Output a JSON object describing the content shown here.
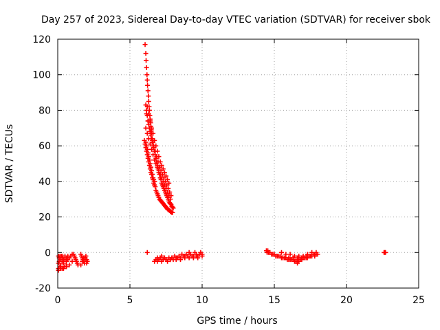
{
  "chart_data": {
    "type": "scatter",
    "title": "Day 257 of 2023, Sidereal Day-to-day VTEC variation (SDTVAR) for receiver sbok",
    "xlabel": "GPS time / hours",
    "ylabel": "SDTVAR / TECUs",
    "xlim": [
      0,
      25
    ],
    "ylim": [
      -20,
      120
    ],
    "xticks": [
      0,
      5,
      10,
      15,
      20,
      25
    ],
    "yticks": [
      -20,
      0,
      20,
      40,
      60,
      80,
      100,
      120
    ],
    "grid": true,
    "marker": "+",
    "marker_color": "#ff0000",
    "series": [
      {
        "name": "SDTVAR",
        "x": [
          0.05,
          0.1,
          0.15,
          0.2,
          0.25,
          0.3,
          0.35,
          0.4,
          0.5,
          0.6,
          0.7,
          0.05,
          0.1,
          0.2,
          0.3,
          0.4,
          0.5,
          0.6,
          0.7,
          0.8,
          0.9,
          1.0,
          0.05,
          0.15,
          0.3,
          0.45,
          0.6,
          0.05,
          0.2,
          0.4,
          0.6,
          0.8,
          1.0,
          1.1,
          1.15,
          1.2,
          1.25,
          1.3,
          1.35,
          1.4,
          1.6,
          1.65,
          1.7,
          1.75,
          1.8,
          1.85,
          1.9,
          1.95,
          2.0,
          2.05,
          1.6,
          1.7,
          1.8,
          1.9,
          2.0,
          6.0,
          6.05,
          6.1,
          6.15,
          6.2,
          6.25,
          6.3,
          6.35,
          6.4,
          6.45,
          6.5,
          6.55,
          6.6,
          6.65,
          6.7,
          6.75,
          6.8,
          6.85,
          6.9,
          6.95,
          7.0,
          7.05,
          7.1,
          7.15,
          7.2,
          7.25,
          7.3,
          7.35,
          7.4,
          7.45,
          7.5,
          7.55,
          7.6,
          7.65,
          7.7,
          7.75,
          7.8,
          7.85,
          7.9,
          7.95,
          6.1,
          6.2,
          6.3,
          6.4,
          6.5,
          6.6,
          6.7,
          6.8,
          6.9,
          7.0,
          7.1,
          7.2,
          7.3,
          7.4,
          7.5,
          7.6,
          7.7,
          7.8,
          6.15,
          6.25,
          6.35,
          6.45,
          6.55,
          6.65,
          6.75,
          6.85,
          6.95,
          7.05,
          7.15,
          7.25,
          7.35,
          7.45,
          7.55,
          7.65,
          7.75,
          7.85,
          6.2,
          6.3,
          6.4,
          6.5,
          6.6,
          6.7,
          6.8,
          6.9,
          7.0,
          7.1,
          7.2,
          7.3,
          7.4,
          7.5,
          7.6,
          7.7,
          6.05,
          6.1,
          6.12,
          6.15,
          6.18,
          6.2,
          6.22,
          6.25,
          6.28,
          6.3,
          6.33,
          6.35,
          6.38,
          6.4,
          6.43,
          6.45,
          6.48,
          6.5,
          6.55,
          6.6,
          6.65,
          6.7,
          6.75,
          6.8,
          6.85,
          6.9,
          6.95,
          7.0,
          7.05,
          7.1,
          7.15,
          7.2,
          7.25,
          7.3,
          7.35,
          7.4,
          7.45,
          7.5,
          7.55,
          7.6,
          7.65,
          7.7,
          7.75,
          7.8,
          7.85,
          7.9,
          7.95,
          8.0,
          6.1,
          6.15,
          6.2,
          6.25,
          6.3,
          6.35,
          6.4,
          6.45,
          6.5,
          6.55,
          6.6,
          6.1,
          6.15,
          6.2,
          6.25,
          6.3,
          6.35,
          6.4,
          6.45,
          6.5,
          6.55,
          6.6,
          6.65,
          6.7,
          6.2,
          6.7,
          6.8,
          6.9,
          7.0,
          7.1,
          7.2,
          7.3,
          7.4,
          7.5,
          7.6,
          7.7,
          7.8,
          7.9,
          8.0,
          8.1,
          8.2,
          8.3,
          8.4,
          8.5,
          8.6,
          8.7,
          8.8,
          8.9,
          9.0,
          9.1,
          9.2,
          9.3,
          9.4,
          9.5,
          9.6,
          9.7,
          9.8,
          9.9,
          10.0,
          6.9,
          7.2,
          7.5,
          7.8,
          8.2,
          8.5,
          8.8,
          9.1,
          9.4,
          9.7,
          10.0,
          9.8,
          9.6,
          14.45,
          14.5,
          14.55,
          14.6,
          14.7,
          14.8,
          14.9,
          15.0,
          15.1,
          15.2,
          15.3,
          15.4,
          15.5,
          15.6,
          15.7,
          15.8,
          15.9,
          16.0,
          16.1,
          16.2,
          16.3,
          16.4,
          16.5,
          16.6,
          16.7,
          16.8,
          16.9,
          17.0,
          17.1,
          17.2,
          17.3,
          17.4,
          17.5,
          17.6,
          17.7,
          17.8,
          17.9,
          18.0,
          15.5,
          15.8,
          16.1,
          16.4,
          16.7,
          17.0,
          17.3,
          17.6,
          17.9,
          16.0,
          16.3,
          16.6,
          16.9,
          17.2,
          17.5,
          17.8,
          16.5,
          16.6,
          16.7,
          22.6,
          22.65,
          22.7
        ],
        "y": [
          -2,
          -3,
          -2,
          -4,
          -2,
          -3,
          -2,
          -4,
          -2,
          -3,
          -2,
          -6,
          -5,
          -7,
          -5,
          -6,
          -4,
          -5,
          -4,
          -3,
          -2,
          -1,
          -9,
          -8,
          -9,
          -8,
          -7,
          -10,
          -9,
          -9,
          -8,
          -7,
          -5,
          -1,
          -2,
          -3,
          -4,
          -5,
          -6,
          -7,
          -1,
          -2,
          -3,
          -4,
          -5,
          -6,
          -3,
          -2,
          -4,
          -5,
          -7,
          -5,
          -3,
          -4,
          -6,
          63,
          61,
          59,
          57,
          55,
          53,
          51,
          49,
          47,
          45,
          44,
          42,
          41,
          39,
          38,
          37,
          35,
          34,
          33,
          32,
          31,
          30,
          29.5,
          29,
          28.5,
          28,
          27.5,
          27,
          26.5,
          26,
          25.5,
          25,
          24.5,
          24,
          24,
          23.5,
          23,
          23,
          22.5,
          22.5,
          70,
          67,
          64,
          61,
          58,
          55,
          52,
          50,
          48,
          46,
          44,
          42,
          40,
          38,
          36,
          34,
          32,
          30,
          78,
          74,
          70,
          66,
          63,
          60,
          57,
          54,
          51,
          48,
          46,
          44,
          42,
          40,
          38,
          36,
          34,
          32,
          82,
          78,
          74,
          70,
          67,
          63,
          60,
          57,
          54,
          51,
          49,
          47,
          45,
          43,
          41,
          39,
          117,
          112,
          108,
          104,
          100,
          97,
          94,
          91,
          88,
          85,
          82,
          80,
          77,
          75,
          73,
          71,
          69,
          67,
          64,
          62,
          59,
          57,
          55,
          53,
          51,
          49,
          47,
          45,
          44,
          42,
          41,
          39,
          38,
          37,
          36,
          35,
          34,
          33,
          32,
          31,
          30,
          29,
          28,
          27.5,
          27,
          26,
          25.5,
          25,
          83,
          80,
          77,
          74,
          72,
          70,
          68,
          66,
          64,
          62,
          60,
          62,
          60,
          58,
          56,
          54,
          52,
          50,
          48,
          46,
          44,
          42,
          41,
          40,
          0,
          -5,
          -4,
          -5,
          -4,
          -3,
          -5,
          -4,
          -3,
          -4,
          -5,
          -3,
          -4,
          -3,
          -4,
          -2,
          -4,
          -3,
          -2,
          -3,
          -1,
          -2,
          -3,
          -1,
          -2,
          0,
          -1,
          -2,
          -3,
          0,
          -1,
          -2,
          -1,
          0,
          -1,
          -3,
          -2,
          -4,
          -4,
          -3,
          -4,
          -2,
          -3,
          -2,
          -3,
          -2,
          -1,
          -2,
          1,
          0,
          1,
          0,
          0,
          -1,
          -1,
          -1,
          -2,
          -2,
          -2,
          -2,
          -3,
          -3,
          -3,
          -3,
          -4,
          -4,
          -4,
          -4,
          -4,
          -5,
          -5,
          -5,
          -4,
          -4,
          -4,
          -3,
          -3,
          -3,
          -3,
          -2,
          -2,
          -2,
          -1,
          -1,
          -1,
          -1,
          0,
          -1,
          -1,
          -2,
          -2,
          -2,
          -1,
          0,
          0,
          -3,
          -3,
          -3,
          -3,
          -2,
          -2,
          -2,
          -5,
          -6,
          -5,
          0,
          0,
          0
        ]
      }
    ]
  }
}
